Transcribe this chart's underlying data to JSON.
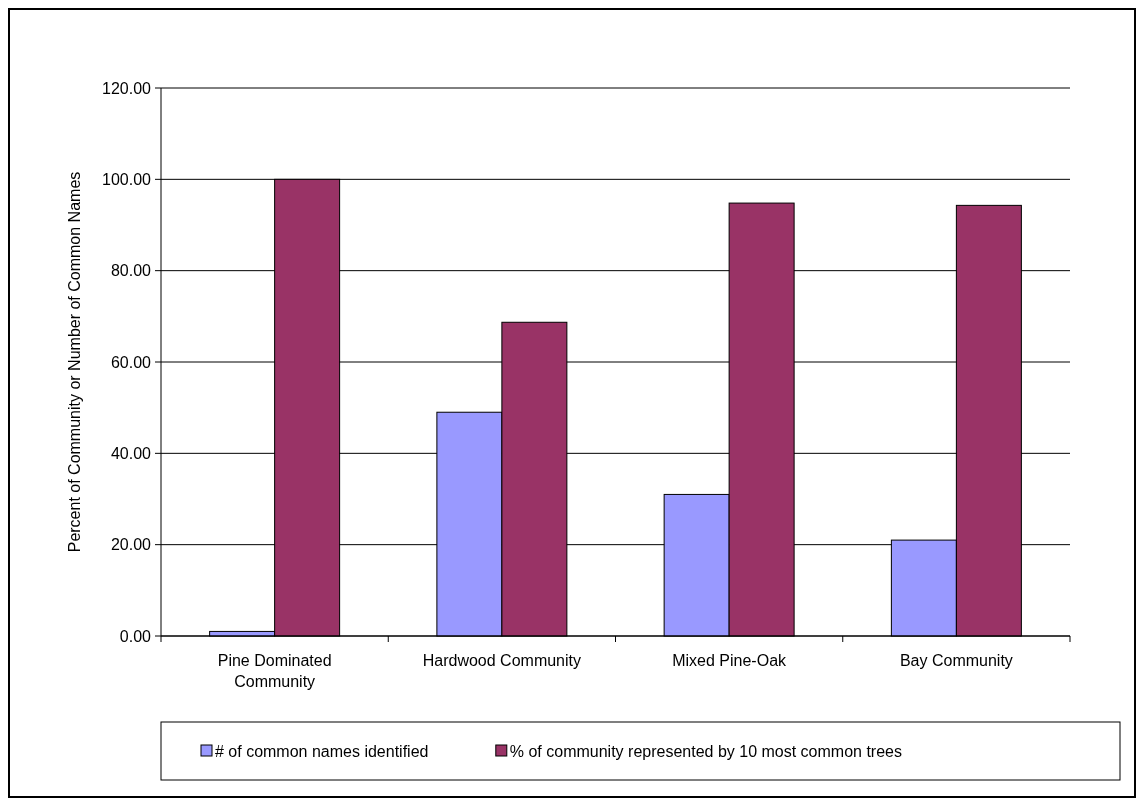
{
  "chart_data": {
    "type": "bar",
    "ylabel": "Percent of Community or Number of Common Names",
    "categories": [
      "Pine Dominated Community",
      "Hardwood Community",
      "Mixed Pine-Oak",
      "Bay Community"
    ],
    "series": [
      {
        "name": "# of common names identified",
        "color": "#9999ff",
        "values": [
          1,
          49,
          31,
          21
        ]
      },
      {
        "name": "% of community represented by 10 most common trees",
        "color": "#993366",
        "values": [
          100,
          68.7,
          94.8,
          94.3
        ]
      }
    ],
    "ylim": [
      0,
      120
    ],
    "yticks": [
      {
        "value": 0,
        "label": "0.00"
      },
      {
        "value": 20,
        "label": "20.00"
      },
      {
        "value": 40,
        "label": "40.00"
      },
      {
        "value": 60,
        "label": "60.00"
      },
      {
        "value": 80,
        "label": "80.00"
      },
      {
        "value": 100,
        "label": "100.00"
      },
      {
        "value": 120,
        "label": "120.00"
      }
    ],
    "grid": "y",
    "legend": "bottom"
  }
}
